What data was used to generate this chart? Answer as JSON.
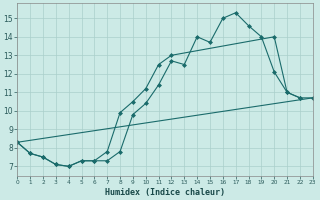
{
  "bg_color": "#cceae6",
  "grid_color": "#aacfcb",
  "line_color": "#1a6b6b",
  "xlabel": "Humidex (Indice chaleur)",
  "xlim": [
    0,
    23
  ],
  "ylim": [
    6.5,
    15.8
  ],
  "yticks": [
    7,
    8,
    9,
    10,
    11,
    12,
    13,
    14,
    15
  ],
  "xticks": [
    0,
    1,
    2,
    3,
    4,
    5,
    6,
    7,
    8,
    9,
    10,
    11,
    12,
    13,
    14,
    15,
    16,
    17,
    18,
    19,
    20,
    21,
    22,
    23
  ],
  "line1_x": [
    0,
    1,
    2,
    3,
    4,
    5,
    6,
    7,
    8,
    9,
    10,
    11,
    12,
    13,
    14,
    15,
    16,
    17,
    18,
    19,
    20,
    21,
    22
  ],
  "line1_y": [
    8.3,
    7.7,
    7.5,
    7.1,
    7.0,
    7.3,
    7.3,
    7.3,
    7.8,
    9.8,
    10.4,
    11.4,
    12.7,
    12.5,
    14.0,
    13.7,
    15.0,
    15.3,
    14.6,
    14.0,
    12.1,
    11.0,
    10.7
  ],
  "line2_x": [
    0,
    1,
    2,
    3,
    4,
    5,
    6,
    7,
    8,
    9,
    10,
    11,
    12,
    20,
    21,
    22,
    23
  ],
  "line2_y": [
    8.3,
    7.7,
    7.5,
    7.1,
    7.0,
    7.3,
    7.3,
    7.8,
    9.9,
    10.5,
    11.2,
    12.5,
    13.0,
    14.0,
    11.0,
    10.7,
    10.7
  ],
  "line3_x": [
    0,
    23
  ],
  "line3_y": [
    8.3,
    10.7
  ]
}
